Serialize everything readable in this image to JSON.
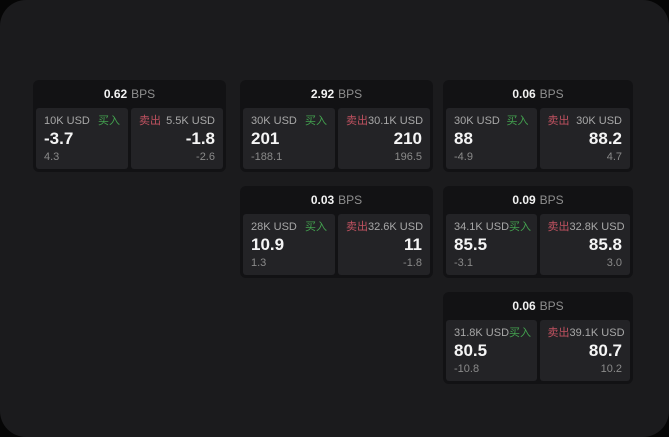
{
  "labels": {
    "bps_suffix": "BPS",
    "buy": "买入",
    "sell": "卖出"
  },
  "colors": {
    "buy_accent": "#43a24f",
    "sell_accent": "#c05260",
    "surface": "#1b1b1d",
    "card_background": "#121214",
    "panel_background": "#232326"
  },
  "cards": [
    {
      "bps": "0.62",
      "row": 1,
      "col": 1,
      "buy": {
        "amount": "10K USD",
        "price": "-3.7",
        "delta": "4.3"
      },
      "sell": {
        "amount": "5.5K USD",
        "price": "-1.8",
        "delta": "-2.6"
      }
    },
    {
      "bps": "2.92",
      "row": 1,
      "col": 2,
      "buy": {
        "amount": "30K USD",
        "price": "201",
        "delta": "-188.1"
      },
      "sell": {
        "amount": "30.1K USD",
        "price": "210",
        "delta": "196.5"
      }
    },
    {
      "bps": "0.06",
      "row": 1,
      "col": 3,
      "buy": {
        "amount": "30K USD",
        "price": "88",
        "delta": "-4.9"
      },
      "sell": {
        "amount": "30K USD",
        "price": "88.2",
        "delta": "4.7"
      }
    },
    {
      "bps": "0.03",
      "row": 2,
      "col": 2,
      "buy": {
        "amount": "28K USD",
        "price": "10.9",
        "delta": "1.3"
      },
      "sell": {
        "amount": "32.6K USD",
        "price": "11",
        "delta": "-1.8"
      }
    },
    {
      "bps": "0.09",
      "row": 2,
      "col": 3,
      "buy": {
        "amount": "34.1K USD",
        "price": "85.5",
        "delta": "-3.1"
      },
      "sell": {
        "amount": "32.8K USD",
        "price": "85.8",
        "delta": "3.0"
      }
    },
    {
      "bps": "0.06",
      "row": 3,
      "col": 3,
      "buy": {
        "amount": "31.8K USD",
        "price": "80.5",
        "delta": "-10.8"
      },
      "sell": {
        "amount": "39.1K USD",
        "price": "80.7",
        "delta": "10.2"
      }
    }
  ]
}
